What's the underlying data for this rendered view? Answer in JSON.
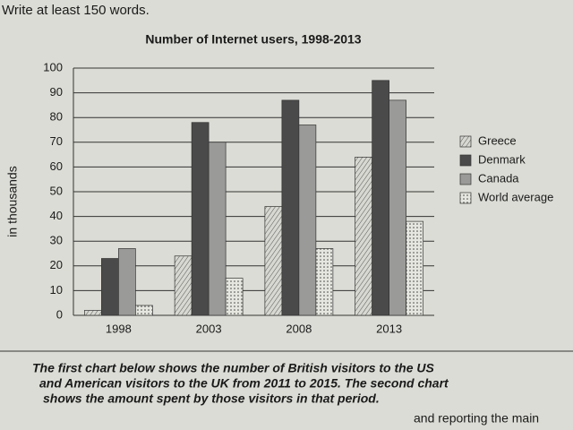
{
  "instruction": "Write at least 150 words.",
  "task_text": [
    "The first chart below shows the number of British visitors to the US",
    "and American visitors to the UK from 2011 to 2015. The second chart",
    "shows the amount spent by those visitors in that period.",
    "and reporting the main"
  ],
  "chart_data": {
    "type": "bar",
    "title": "Number of Internet users, 1998-2013",
    "y_label": "in thousands",
    "categories": [
      "1998",
      "2003",
      "2008",
      "2013"
    ],
    "series": [
      {
        "name": "Greece",
        "color": "#d8d8d2",
        "pattern": "hatch",
        "values": [
          2,
          24,
          44,
          64
        ]
      },
      {
        "name": "Denmark",
        "color": "#4a4a4a",
        "pattern": "solid",
        "values": [
          23,
          78,
          87,
          95
        ]
      },
      {
        "name": "Canada",
        "color": "#9a9a98",
        "pattern": "solid",
        "values": [
          27,
          70,
          77,
          87
        ]
      },
      {
        "name": "World average",
        "color": "#e6e6e0",
        "pattern": "dots",
        "values": [
          4,
          15,
          27,
          38
        ]
      }
    ],
    "ylim": [
      0,
      100
    ],
    "yticks": [
      0,
      10,
      20,
      30,
      40,
      50,
      60,
      70,
      80,
      90,
      100
    ],
    "grid": true,
    "legend": "right"
  }
}
